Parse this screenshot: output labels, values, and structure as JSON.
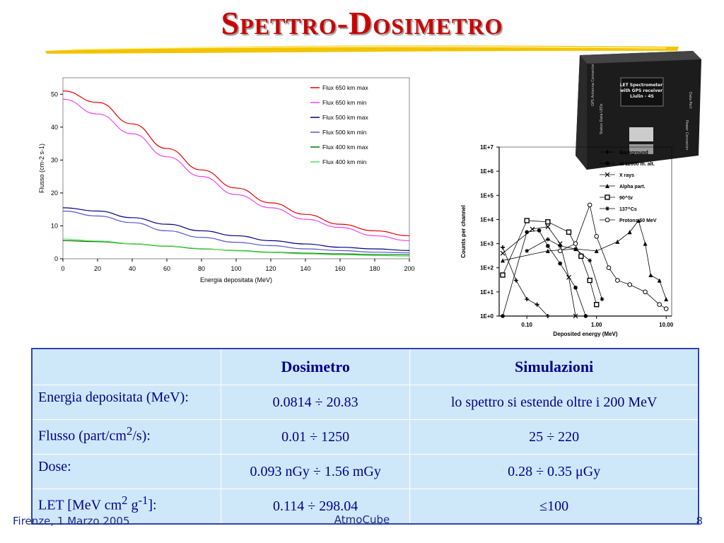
{
  "slide": {
    "title": "Spettro-Dosimetro",
    "footer_left": "Firenze, 1 Marzo 2005",
    "footer_center": "AtmoCube",
    "footer_right": "8"
  },
  "colors": {
    "title": "#cc0000",
    "brush": "#f2c400",
    "table_bg": "#cfe8f9",
    "table_border": "#3344aa",
    "table_text": "#00008b"
  },
  "chart_data": [
    {
      "type": "line",
      "title": "",
      "xlabel": "Energia depositata (MeV)",
      "ylabel": "Flusso (cm-2 s-1)",
      "xlim": [
        0,
        200
      ],
      "ylim": [
        0,
        55
      ],
      "xticks": [
        0,
        20,
        40,
        60,
        80,
        100,
        120,
        140,
        160,
        180,
        200
      ],
      "yticks": [
        0,
        10,
        20,
        30,
        40,
        50
      ],
      "legend_position": "top-right",
      "grid": false,
      "x": [
        0,
        20,
        40,
        60,
        80,
        100,
        120,
        140,
        160,
        180,
        200
      ],
      "series": [
        {
          "name": "Flux 650 km max",
          "color": "#e00000",
          "values": [
            51,
            47.5,
            41,
            33.5,
            27,
            21.5,
            17,
            13.5,
            10.5,
            8.5,
            7
          ]
        },
        {
          "name": "Flux 650 km min",
          "color": "#ee44ee",
          "values": [
            48.5,
            44,
            38,
            31,
            25,
            19.5,
            15.5,
            12,
            9.5,
            7,
            5.5
          ]
        },
        {
          "name": "Flux 500 km max",
          "color": "#000080",
          "values": [
            15.5,
            14.5,
            12.5,
            10.5,
            8.5,
            7,
            5.5,
            4.5,
            3.5,
            3,
            2.5
          ]
        },
        {
          "name": "Flux 500 km min",
          "color": "#5555cc",
          "values": [
            14.5,
            13,
            11,
            8.5,
            6.5,
            5,
            4,
            3,
            2.5,
            2,
            1.8
          ]
        },
        {
          "name": "Flux 400 km max",
          "color": "#007700",
          "values": [
            5.5,
            5.2,
            4.5,
            3.8,
            3,
            2.5,
            2,
            1.7,
            1.5,
            1.3,
            1.2
          ]
        },
        {
          "name": "Flux 400 km min",
          "color": "#55dd55",
          "values": [
            6,
            5.4,
            4.6,
            3.9,
            3.1,
            2.4,
            1.9,
            1.5,
            1.2,
            1,
            0.8
          ]
        }
      ]
    },
    {
      "type": "scatter",
      "title": "",
      "xlabel": "Deposited energy (MeV)",
      "ylabel": "Counts per channel",
      "xscale": "log",
      "yscale": "log",
      "xlim": [
        0.04,
        12
      ],
      "ylim": [
        1,
        10000000
      ],
      "xticks": [
        {
          "value": 0.1,
          "label": "0.10"
        },
        {
          "value": 1,
          "label": "1.00"
        },
        {
          "value": 10,
          "label": "10.00"
        }
      ],
      "yticks": [
        {
          "value": 1,
          "label": "1E+0"
        },
        {
          "value": 10,
          "label": "1E+1"
        },
        {
          "value": 100,
          "label": "1E+2"
        },
        {
          "value": 1000,
          "label": "1E+3"
        },
        {
          "value": 10000,
          "label": "1E+4"
        },
        {
          "value": 100000,
          "label": "1E+5"
        },
        {
          "value": 1000000,
          "label": "1E+6"
        },
        {
          "value": 10000000,
          "label": "1E+7"
        }
      ],
      "legend_position": "top-right",
      "series": [
        {
          "name": "Background",
          "marker": "plus",
          "x": [
            0.045,
            0.07,
            0.1,
            0.14,
            0.2
          ],
          "y": [
            700,
            30,
            5,
            3,
            1
          ]
        },
        {
          "name": "at 12000 m. alt.",
          "marker": "disc",
          "x": [
            0.045,
            0.1,
            0.15,
            0.2,
            0.3,
            0.5,
            0.7
          ],
          "y": [
            1,
            3000,
            3500,
            800,
            150,
            15,
            1
          ]
        },
        {
          "name": "X rays",
          "marker": "x",
          "x": [
            0.045,
            0.12,
            0.2,
            0.3,
            0.4,
            0.5
          ],
          "y": [
            400,
            4000,
            5000,
            1000,
            40,
            1
          ]
        },
        {
          "name": "Alpha part.",
          "marker": "triangle",
          "x": [
            0.045,
            0.2,
            0.5,
            1,
            2,
            3,
            4,
            5,
            6,
            8,
            10
          ],
          "y": [
            200,
            500,
            600,
            500,
            1200,
            3000,
            9000,
            1000,
            50,
            30,
            5
          ]
        },
        {
          "name": "90^Sr",
          "marker": "square",
          "x": [
            0.045,
            0.1,
            0.2,
            0.4,
            0.6,
            0.8,
            1
          ],
          "y": [
            50,
            9000,
            8000,
            3000,
            300,
            30,
            3
          ]
        },
        {
          "name": "137^Cs",
          "marker": "star",
          "x": [
            0.1,
            0.2,
            0.3,
            0.5,
            0.8,
            1.2
          ],
          "y": [
            500,
            1500,
            800,
            600,
            200,
            5
          ]
        },
        {
          "name": "Protons 60 MeV",
          "marker": "circle",
          "x": [
            0.3,
            0.5,
            0.8,
            1,
            1.5,
            2,
            3,
            5,
            8,
            10
          ],
          "y": [
            500,
            1000,
            40000,
            2000,
            100,
            30,
            20,
            10,
            3,
            2
          ]
        }
      ]
    }
  ],
  "table": {
    "headers": [
      "",
      "Dosimetro",
      "Simulazioni"
    ],
    "rows": [
      {
        "label": "Energia depositata (MeV):",
        "dosimetro": "0.0814 ÷ 20.83",
        "simulazioni": "lo spettro si estende oltre i 200 MeV"
      },
      {
        "label_pre": "Flusso (part/cm",
        "label_sup": "2",
        "label_post": "/s):",
        "dosimetro": "0.01 ÷ 1250",
        "simulazioni": "25 ÷ 220"
      },
      {
        "label": "Dose:",
        "dosimetro": "0.093 nGy ÷ 1.56 mGy",
        "simulazioni": "0.28 ÷ 0.35 μGy"
      },
      {
        "label_pre": "LET [MeV cm",
        "label_sup": "2",
        "label_mid": " g",
        "label_sup2": "-1",
        "label_post": "]:",
        "dosimetro": "0.114 ÷ 298.04",
        "simulazioni": "≤100"
      }
    ]
  },
  "device": {
    "label_main": "LET Spectrometer with GPS receiver Liulin - 4S",
    "label_side1": "GPS Antenna Connector",
    "label_side2": "Status Data LEDs",
    "label_right1": "Data Port",
    "label_right2": "Power Connector"
  }
}
